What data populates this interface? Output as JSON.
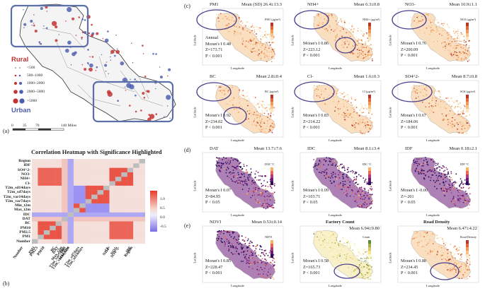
{
  "panel_a": {
    "label": "(a)",
    "rural_label": "Rural",
    "urban_label": "Urban",
    "legend": [
      "<500",
      "500~1000",
      "1000~2000",
      "2000~5000",
      ">5000"
    ],
    "scale_ticks": [
      "0",
      "35",
      "70",
      "140 Miles"
    ]
  },
  "panel_b": {
    "label": "(b)",
    "title": "Correlation Heatmap with Significance Highlighted",
    "rows": [
      "Region",
      "IDF",
      "SO4^2-",
      "NO3-",
      "NH4+",
      "Cl-",
      "T2m_sd14days",
      "T2m_sd7days",
      "T2m_var14days",
      "T2m_var7days",
      "Min_t2m",
      "Max_t2m",
      "IDC",
      "DAT",
      "BC",
      "PM10",
      "PM2.5",
      "PM1",
      "Number"
    ],
    "cols": [
      "Number",
      "PM1",
      "PM2.5",
      "PM10",
      "BC",
      "DAT",
      "IDC",
      "Max_t2m",
      "Min_t2m",
      "T2m_var7days",
      "T2m_var14days",
      "T2m_sd7days",
      "T2m_sd14days",
      "Cl-",
      "NH4+",
      "NO3-",
      "SO4^2-",
      "IDF",
      "Region"
    ],
    "colorbar_ticks": [
      "1.0",
      "0.5",
      "0.0",
      "-0.5"
    ]
  },
  "panel_c": {
    "label": "(c)",
    "maps": [
      {
        "name": "PM1",
        "mean": "Mean (SD) 26.4±13.3",
        "prefix": "Annual",
        "moran": "Moran's I 0.48",
        "z": "Z=173.71",
        "p": "P < 0.001",
        "unit": "PM1 (μg/m³)"
      },
      {
        "name": "NH4+",
        "mean": "Mean 6.3±0.8",
        "prefix": "",
        "moran": "Moran's I 0.86",
        "z": "Z=223.12",
        "p": "P < 0.001",
        "unit": "NH4+ (μg/m³)"
      },
      {
        "name": "NO3-",
        "mean": "Mean 10.9±1.1",
        "prefix": "",
        "moran": "Moran's I 0.76",
        "z": "Z=200.09",
        "p": "P < 0.001",
        "unit": "NO3 (μg/m³)"
      },
      {
        "name": "BC",
        "mean": "Mean 2.8±0.4",
        "prefix": "",
        "moran": "Moran's I 0.92",
        "z": "Z=234.02",
        "p": "P < 0.001",
        "unit": "BC (μg/m³)"
      },
      {
        "name": "Cl-",
        "mean": "Mean 1.6±0.3",
        "prefix": "",
        "moran": "Moran's I 0.83",
        "z": "Z=214.22",
        "p": "P < 0.001",
        "unit": "Cl (μg/m³)"
      },
      {
        "name": "SO4^2-",
        "mean": "Mean 8.7±0.8",
        "prefix": "",
        "moran": "Moran's I 0.67",
        "z": "Z=184.06",
        "p": "P < 0.001",
        "unit": "SO4 (μg/m³)"
      }
    ]
  },
  "panel_d": {
    "label": "(d)",
    "maps": [
      {
        "name": "DAT",
        "mean": "Mean 13.7±7.6",
        "moran": "Moran's I 0.07",
        "z": "Z=84.95",
        "p": "P < 0.05",
        "unit": "DAT °C"
      },
      {
        "name": "IDC",
        "mean": "Mean 8.1±3.4",
        "moran": "Moran's I 0.09",
        "z": "Z=103.71",
        "p": "P < 0.05",
        "unit": "IDC °C"
      },
      {
        "name": "IDF",
        "mean": "Mean 0.18±2.1",
        "moran": "Moran's I -0.00",
        "z": "Z=-201",
        "p": "P < 0.05",
        "unit": "IDF °C"
      }
    ]
  },
  "panel_e": {
    "label": "(e)",
    "maps": [
      {
        "name": "NDVI",
        "mean": "Mean 0.53±0.14",
        "moran": "Moran's I 0.85",
        "z": "Z=228.47",
        "p": "P < 0.001",
        "unit": "NDVI"
      },
      {
        "name": "Factory Count",
        "mean": "Mean 6.94±9.80",
        "moran": "Moran's I 0.58",
        "z": "Z=165.73",
        "p": "P < 0.001",
        "unit": "Count"
      },
      {
        "name": "Road Density",
        "mean": "Mean 6.47±4.22",
        "moran": "Moran's I 0.88",
        "z": "Z=234.45",
        "p": "P < 0.001",
        "unit": "Road Density"
      }
    ]
  },
  "axis": {
    "x": "Longitude",
    "y": "Latitude"
  },
  "colors": {
    "warm": "#e8503a",
    "cool": "#6f74d8",
    "ring": "#4a3f8c"
  }
}
